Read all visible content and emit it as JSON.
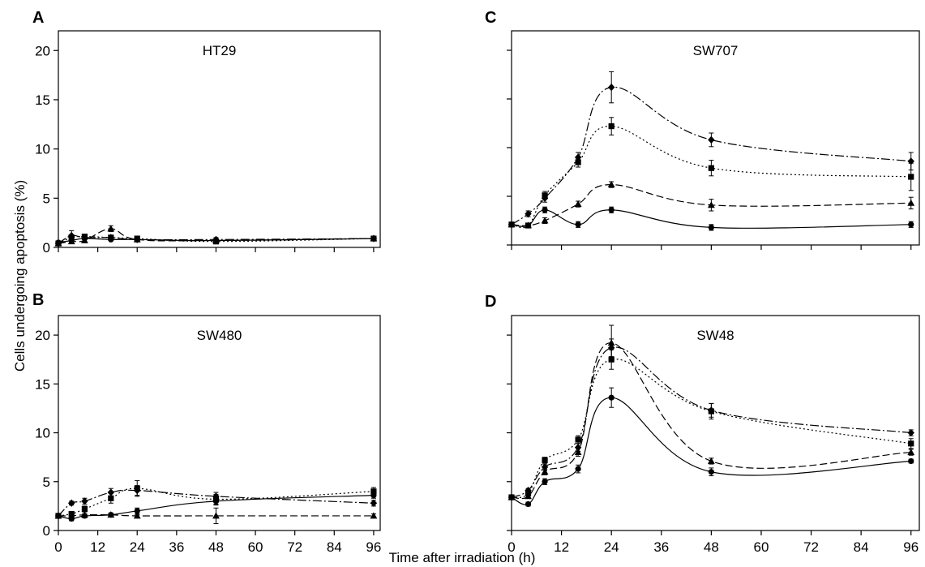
{
  "figure": {
    "ylabel": "Cells undergoing apoptosis (%)",
    "xlabel": "Time after irradiation (h)"
  },
  "chart_data": [
    {
      "panel": "A",
      "title": "HT29",
      "type": "line",
      "xlim": [
        0,
        98
      ],
      "ylim": [
        0,
        22
      ],
      "xticks": [
        0,
        12,
        24,
        36,
        48,
        60,
        72,
        84,
        96
      ],
      "yticks": [
        0,
        5,
        10,
        15,
        20
      ],
      "show_x_tick_labels": false,
      "show_y_tick_labels": true,
      "series": [
        {
          "marker": "circle",
          "dash": "solid",
          "x": [
            0,
            4,
            8,
            16,
            24,
            48,
            96
          ],
          "y": [
            0.5,
            0.7,
            0.9,
            0.8,
            0.8,
            0.7,
            0.9
          ],
          "err": [
            0,
            0.1,
            0.1,
            0.1,
            0.1,
            0.1,
            0.1
          ]
        },
        {
          "marker": "triangle",
          "dash": "dashed",
          "x": [
            0,
            4,
            8,
            16,
            24,
            48,
            96
          ],
          "y": [
            0.4,
            0.6,
            0.7,
            1.9,
            0.8,
            0.7,
            0.9
          ],
          "err": [
            0,
            0.2,
            0.2,
            0.3,
            0.1,
            0.1,
            0.1
          ]
        },
        {
          "marker": "square",
          "dash": "dotted",
          "x": [
            0,
            4,
            8,
            16,
            24,
            48,
            96
          ],
          "y": [
            0.4,
            1.0,
            1.1,
            1.0,
            0.9,
            0.6,
            0.9
          ],
          "err": [
            0,
            0.2,
            0.2,
            0.2,
            0.1,
            0.1,
            0.1
          ]
        },
        {
          "marker": "diamond",
          "dash": "dashdot",
          "x": [
            0,
            4,
            8,
            16,
            24,
            48,
            96
          ],
          "y": [
            0.4,
            1.2,
            1.0,
            1.0,
            0.8,
            0.8,
            0.9
          ],
          "err": [
            0,
            0.5,
            0.2,
            0.2,
            0.2,
            0.2,
            0.1
          ]
        }
      ]
    },
    {
      "panel": "B",
      "title": "SW480",
      "type": "line",
      "xlim": [
        0,
        98
      ],
      "ylim": [
        0,
        22
      ],
      "xticks": [
        0,
        12,
        24,
        36,
        48,
        60,
        72,
        84,
        96
      ],
      "yticks": [
        0,
        5,
        10,
        15,
        20
      ],
      "show_x_tick_labels": true,
      "show_y_tick_labels": true,
      "series": [
        {
          "marker": "circle",
          "dash": "solid",
          "x": [
            0,
            4,
            8,
            16,
            24,
            48,
            96
          ],
          "y": [
            1.5,
            1.2,
            1.5,
            1.6,
            2.0,
            3.0,
            3.6
          ],
          "err": [
            0,
            0.2,
            0.2,
            0.2,
            0.3,
            0.4,
            0.3
          ]
        },
        {
          "marker": "triangle",
          "dash": "dashed",
          "x": [
            0,
            4,
            8,
            16,
            24,
            48,
            96
          ],
          "y": [
            1.5,
            1.5,
            1.6,
            1.6,
            1.5,
            1.5,
            1.5
          ],
          "err": [
            0,
            0.1,
            0.1,
            0.1,
            0.1,
            0.8,
            0.2
          ]
        },
        {
          "marker": "square",
          "dash": "dotted",
          "x": [
            0,
            4,
            8,
            16,
            24,
            48,
            96
          ],
          "y": [
            1.5,
            1.7,
            2.2,
            3.3,
            4.3,
            3.2,
            4.0
          ],
          "err": [
            0,
            0.2,
            0.3,
            0.5,
            0.8,
            0.5,
            0.4
          ]
        },
        {
          "marker": "diamond",
          "dash": "dashdot",
          "x": [
            0,
            4,
            8,
            16,
            24,
            48,
            96
          ],
          "y": [
            1.5,
            2.8,
            3.0,
            3.9,
            4.1,
            3.5,
            2.8
          ],
          "err": [
            0,
            0.2,
            0.3,
            0.4,
            0.5,
            0.4,
            0.3
          ]
        }
      ]
    },
    {
      "panel": "C",
      "title": "SW707",
      "type": "line",
      "xlim": [
        0,
        98
      ],
      "ylim": [
        0,
        22
      ],
      "xticks": [
        0,
        12,
        24,
        36,
        48,
        60,
        72,
        84,
        96
      ],
      "yticks": [
        0,
        5,
        10,
        15,
        20
      ],
      "show_x_tick_labels": false,
      "show_y_tick_labels": false,
      "series": [
        {
          "marker": "circle",
          "dash": "solid",
          "x": [
            0,
            4,
            8,
            16,
            24,
            48,
            96
          ],
          "y": [
            2.1,
            2.0,
            3.6,
            2.1,
            3.6,
            1.8,
            2.1
          ],
          "err": [
            0,
            0.2,
            0.3,
            0.3,
            0.3,
            0.3,
            0.3
          ]
        },
        {
          "marker": "triangle",
          "dash": "dashed",
          "x": [
            0,
            4,
            8,
            16,
            24,
            48,
            96
          ],
          "y": [
            2.1,
            2.0,
            2.5,
            4.2,
            6.2,
            4.1,
            4.3
          ],
          "err": [
            0,
            0.2,
            0.3,
            0.3,
            0.3,
            0.6,
            0.6
          ]
        },
        {
          "marker": "square",
          "dash": "dotted",
          "x": [
            0,
            4,
            8,
            16,
            24,
            48,
            96
          ],
          "y": [
            2.1,
            2.0,
            5.1,
            8.5,
            12.2,
            7.9,
            7.0
          ],
          "err": [
            0,
            0.2,
            0.4,
            0.5,
            0.9,
            0.8,
            1.4
          ]
        },
        {
          "marker": "diamond",
          "dash": "dashdot",
          "x": [
            0,
            4,
            8,
            16,
            24,
            48,
            96
          ],
          "y": [
            2.1,
            3.2,
            4.8,
            9.0,
            16.2,
            10.8,
            8.6
          ],
          "err": [
            0,
            0.3,
            0.4,
            0.5,
            1.6,
            0.7,
            0.9
          ]
        }
      ]
    },
    {
      "panel": "D",
      "title": "SW48",
      "type": "line",
      "xlim": [
        0,
        98
      ],
      "ylim": [
        0,
        22
      ],
      "xticks": [
        0,
        12,
        24,
        36,
        48,
        60,
        72,
        84,
        96
      ],
      "yticks": [
        0,
        5,
        10,
        15,
        20
      ],
      "show_x_tick_labels": true,
      "show_y_tick_labels": false,
      "series": [
        {
          "marker": "circle",
          "dash": "solid",
          "x": [
            0,
            4,
            8,
            16,
            24,
            48,
            96
          ],
          "y": [
            3.4,
            2.7,
            5.0,
            6.3,
            13.6,
            6.0,
            7.1
          ],
          "err": [
            0,
            0.2,
            0.3,
            0.4,
            1.0,
            0.4,
            0.2
          ]
        },
        {
          "marker": "triangle",
          "dash": "dashed",
          "x": [
            0,
            4,
            8,
            16,
            24,
            48,
            96
          ],
          "y": [
            3.4,
            3.5,
            6.0,
            8.0,
            19.2,
            7.1,
            8.0
          ],
          "err": [
            0,
            0.2,
            0.3,
            0.4,
            1.8,
            0.3,
            0.3
          ]
        },
        {
          "marker": "square",
          "dash": "dotted",
          "x": [
            0,
            4,
            8,
            16,
            24,
            48,
            96
          ],
          "y": [
            3.4,
            3.8,
            7.2,
            9.3,
            17.5,
            12.2,
            8.9
          ],
          "err": [
            0,
            0.2,
            0.3,
            0.4,
            1.0,
            0.8,
            0.5
          ]
        },
        {
          "marker": "diamond",
          "dash": "dashdot",
          "x": [
            0,
            4,
            8,
            16,
            24,
            48,
            96
          ],
          "y": [
            3.4,
            4.1,
            6.5,
            8.5,
            18.7,
            12.3,
            10.0
          ],
          "err": [
            0,
            0.2,
            0.3,
            0.4,
            0.9,
            0.7,
            0.3
          ]
        }
      ]
    }
  ]
}
